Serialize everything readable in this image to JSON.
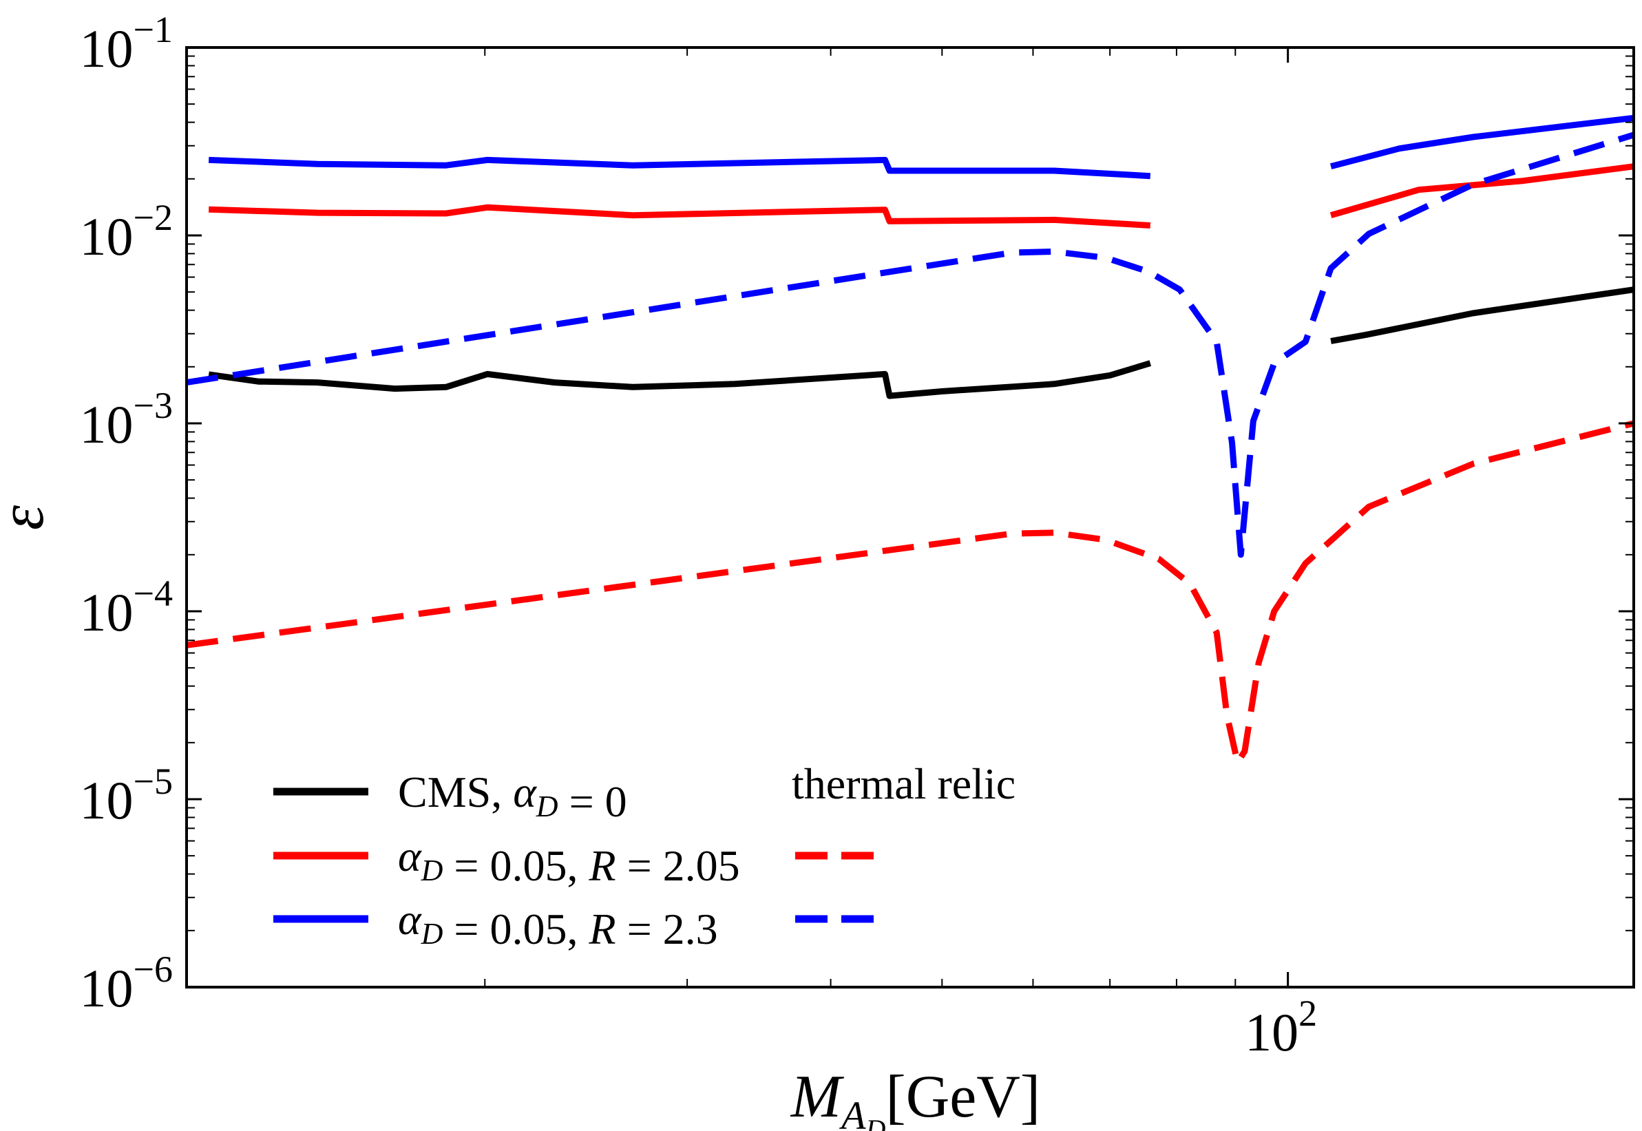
{
  "chart_data": {
    "type": "line",
    "xlabel": "M_A_D [GeV]",
    "ylabel": "ε",
    "xscale": "log",
    "yscale": "log",
    "xlim": [
      11,
      200
    ],
    "ylim": [
      1e-06,
      0.1
    ],
    "x_tick_labels": [
      {
        "value": 100,
        "label": "10",
        "exp": "2"
      }
    ],
    "y_tick_labels": [
      {
        "value": 0.1,
        "label": "10",
        "exp": "−1"
      },
      {
        "value": 0.01,
        "label": "10",
        "exp": "−2"
      },
      {
        "value": 0.001,
        "label": "10",
        "exp": "−3"
      },
      {
        "value": 0.0001,
        "label": "10",
        "exp": "−4"
      },
      {
        "value": 1e-05,
        "label": "10",
        "exp": "−5"
      },
      {
        "value": 1e-06,
        "label": "10",
        "exp": "−6"
      }
    ],
    "grid": false,
    "legend": {
      "placement": "bottom-left",
      "column2_title": "thermal relic"
    },
    "series": [
      {
        "name": "CMS, α_D = 0",
        "color": "#000000",
        "style": "solid",
        "segments": [
          [
            [
              11.5,
              0.00182
            ],
            [
              12.7,
              0.00167
            ],
            [
              14.3,
              0.00165
            ],
            [
              16.7,
              0.00153
            ],
            [
              18.5,
              0.00156
            ],
            [
              20.1,
              0.00183
            ],
            [
              23,
              0.00165
            ],
            [
              26.9,
              0.00156
            ],
            [
              33,
              0.00162
            ],
            [
              44.6,
              0.00183
            ],
            [
              45,
              0.0014
            ],
            [
              50,
              0.00148
            ],
            [
              62.6,
              0.00162
            ],
            [
              70,
              0.0018
            ],
            [
              75.9,
              0.00209
            ]
          ],
          [
            [
              109,
              0.00274
            ],
            [
              117,
              0.00296
            ],
            [
              145,
              0.00386
            ],
            [
              200,
              0.00515
            ]
          ]
        ]
      },
      {
        "name": "α_D = 0.05, R = 2.05",
        "color": "#ff0000",
        "style": "solid",
        "segments": [
          [
            [
              11.5,
              0.01374
            ],
            [
              14.3,
              0.0132
            ],
            [
              18.5,
              0.0131
            ],
            [
              20.1,
              0.0141
            ],
            [
              26.9,
              0.0128
            ],
            [
              44.6,
              0.0137
            ],
            [
              45,
              0.0119
            ],
            [
              62.6,
              0.0121
            ],
            [
              75.9,
              0.0113
            ]
          ],
          [
            [
              109,
              0.0128
            ],
            [
              130,
              0.0175
            ],
            [
              160,
              0.0195
            ],
            [
              200,
              0.0233
            ]
          ]
        ]
      },
      {
        "name": "α_D = 0.05, R = 2.3",
        "color": "#0000ff",
        "style": "solid",
        "segments": [
          [
            [
              11.5,
              0.0252
            ],
            [
              14.3,
              0.024
            ],
            [
              18.5,
              0.0236
            ],
            [
              20.1,
              0.0252
            ],
            [
              26.9,
              0.0236
            ],
            [
              44.6,
              0.0252
            ],
            [
              45,
              0.0221
            ],
            [
              62.6,
              0.0221
            ],
            [
              75.9,
              0.0207
            ]
          ],
          [
            [
              109,
              0.0233
            ],
            [
              125,
              0.029
            ],
            [
              145,
              0.0334
            ],
            [
              200,
              0.0422
            ]
          ]
        ]
      },
      {
        "name": "thermal relic (α_D = 0.05, R = 2.05)",
        "color": "#ff0000",
        "style": "dashed",
        "segments": [
          [
            [
              11,
              6.6e-05
            ],
            [
              57.5,
              0.000259
            ],
            [
              62.6,
              0.000262
            ],
            [
              69.4,
              0.00024
            ],
            [
              77.2,
              0.00019
            ],
            [
              82.2,
              0.00014
            ],
            [
              86.7,
              7.7e-05
            ],
            [
              88.5,
              2.8e-05
            ],
            [
              90.4,
              1.57e-05
            ],
            [
              91.7,
              1.8e-05
            ],
            [
              94.3,
              5.3e-05
            ],
            [
              97.3,
              0.0001
            ],
            [
              103.6,
              0.00018
            ],
            [
              117.6,
              0.00036
            ],
            [
              145,
              0.00061
            ],
            [
              200,
              0.001
            ]
          ]
        ]
      },
      {
        "name": "thermal relic (α_D = 0.05, R = 2.3)",
        "color": "#0000ff",
        "style": "dashed",
        "segments": [
          [
            [
              11,
              0.00165
            ],
            [
              57.5,
              0.0081
            ],
            [
              62.6,
              0.0082
            ],
            [
              69.4,
              0.0076
            ],
            [
              75.6,
              0.00642
            ],
            [
              80.5,
              0.00515
            ],
            [
              86.7,
              0.00272
            ],
            [
              89.4,
              0.00079
            ],
            [
              91,
              0.0002
            ],
            [
              93.3,
              0.00103
            ],
            [
              97.3,
              0.00209
            ],
            [
              103.6,
              0.00272
            ],
            [
              109,
              0.00669
            ],
            [
              117.6,
              0.0102
            ],
            [
              145,
              0.0187
            ],
            [
              200,
              0.0343
            ]
          ]
        ]
      }
    ]
  }
}
